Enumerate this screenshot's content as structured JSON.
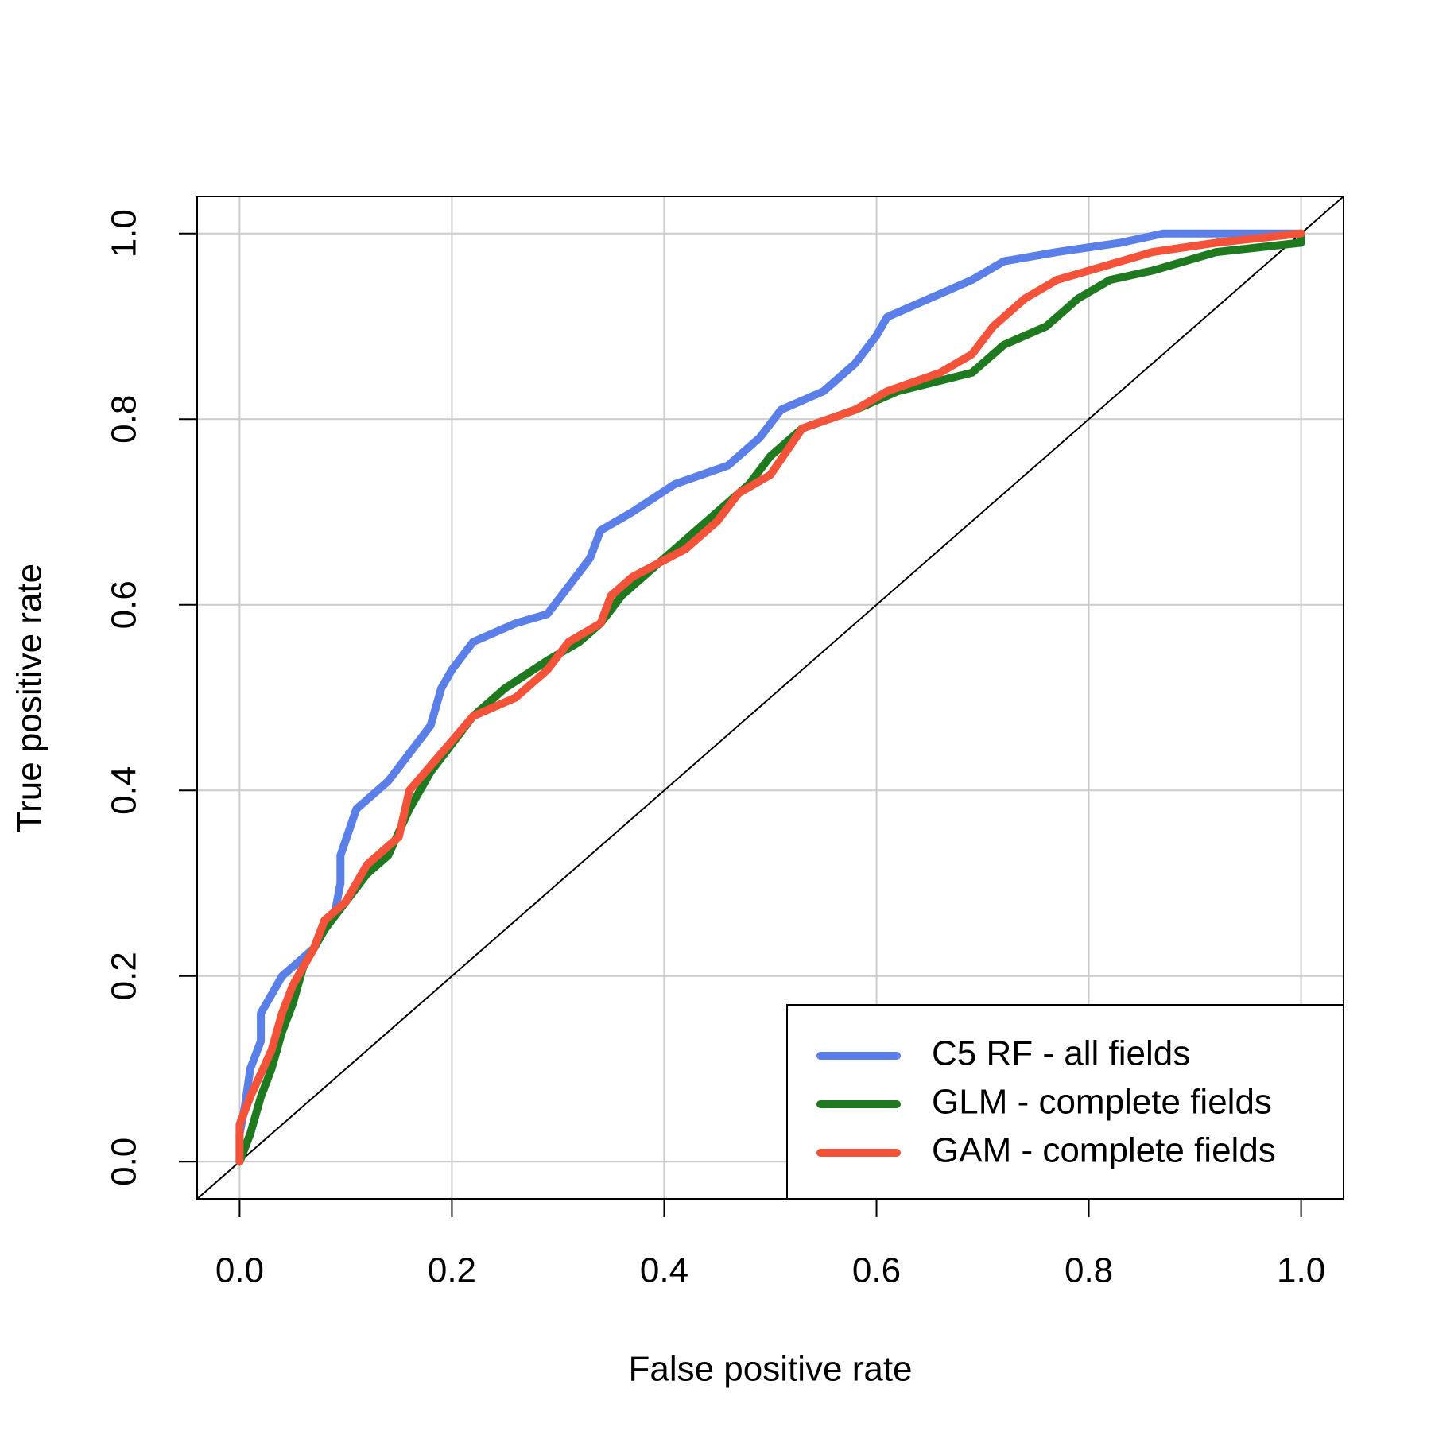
{
  "chart_data": {
    "type": "line",
    "xlabel": "False positive rate",
    "ylabel": "True positive rate",
    "xlim": [
      -0.04,
      1.04
    ],
    "ylim": [
      -0.04,
      1.04
    ],
    "xticks": [
      {
        "value": 0,
        "label": "0.0"
      },
      0.2,
      0.4,
      0.6,
      0.8,
      {
        "value": 1,
        "label": "1.0"
      }
    ],
    "yticks": [
      {
        "value": 0,
        "label": "0.0"
      },
      0.2,
      0.4,
      0.6,
      0.8,
      {
        "value": 1,
        "label": "1.0"
      }
    ],
    "grid": true,
    "legend": "bottomright",
    "series": [
      {
        "name": "C5 RF - all fields",
        "color": "#5b7fe8",
        "x": [
          0,
          0,
          0.005,
          0.01,
          0.02,
          0.02,
          0.03,
          0.04,
          0.05,
          0.07,
          0.09,
          0.095,
          0.095,
          0.11,
          0.14,
          0.16,
          0.18,
          0.19,
          0.2,
          0.22,
          0.26,
          0.29,
          0.31,
          0.33,
          0.34,
          0.37,
          0.41,
          0.46,
          0.49,
          0.51,
          0.55,
          0.58,
          0.6,
          0.61,
          0.65,
          0.69,
          0.72,
          0.77,
          0.83,
          0.87,
          1.0
        ],
        "values": [
          0,
          0.03,
          0.06,
          0.1,
          0.13,
          0.16,
          0.18,
          0.2,
          0.21,
          0.23,
          0.27,
          0.3,
          0.33,
          0.38,
          0.41,
          0.44,
          0.47,
          0.51,
          0.53,
          0.56,
          0.58,
          0.59,
          0.62,
          0.65,
          0.68,
          0.7,
          0.73,
          0.75,
          0.78,
          0.81,
          0.83,
          0.86,
          0.89,
          0.91,
          0.93,
          0.95,
          0.97,
          0.98,
          0.99,
          1.0,
          1.0
        ]
      },
      {
        "name": "GLM - complete fields",
        "color": "#1f7a1f",
        "x": [
          0,
          0.01,
          0.02,
          0.03,
          0.04,
          0.05,
          0.06,
          0.08,
          0.1,
          0.12,
          0.14,
          0.16,
          0.18,
          0.2,
          0.22,
          0.25,
          0.29,
          0.32,
          0.34,
          0.36,
          0.39,
          0.42,
          0.45,
          0.48,
          0.5,
          0.53,
          0.58,
          0.62,
          0.69,
          0.72,
          0.76,
          0.79,
          0.82,
          0.86,
          0.92,
          1,
          1
        ],
        "values": [
          0,
          0.03,
          0.07,
          0.1,
          0.14,
          0.17,
          0.21,
          0.25,
          0.28,
          0.31,
          0.33,
          0.38,
          0.42,
          0.45,
          0.48,
          0.51,
          0.54,
          0.56,
          0.58,
          0.61,
          0.64,
          0.67,
          0.7,
          0.73,
          0.76,
          0.79,
          0.81,
          0.83,
          0.85,
          0.88,
          0.9,
          0.93,
          0.95,
          0.96,
          0.98,
          0.99,
          1
        ]
      },
      {
        "name": "GAM - complete fields",
        "color": "#f4533a",
        "x": [
          0,
          0,
          0.01,
          0.03,
          0.04,
          0.05,
          0.07,
          0.08,
          0.1,
          0.12,
          0.15,
          0.16,
          0.19,
          0.22,
          0.26,
          0.29,
          0.31,
          0.34,
          0.35,
          0.37,
          0.42,
          0.45,
          0.47,
          0.5,
          0.53,
          0.58,
          0.61,
          0.66,
          0.69,
          0.71,
          0.74,
          0.77,
          0.8,
          0.86,
          0.92,
          1
        ],
        "values": [
          0,
          0.04,
          0.07,
          0.12,
          0.16,
          0.19,
          0.23,
          0.26,
          0.28,
          0.32,
          0.35,
          0.4,
          0.44,
          0.48,
          0.5,
          0.53,
          0.56,
          0.58,
          0.61,
          0.63,
          0.66,
          0.69,
          0.72,
          0.74,
          0.79,
          0.81,
          0.83,
          0.85,
          0.87,
          0.9,
          0.93,
          0.95,
          0.96,
          0.98,
          0.99,
          1
        ]
      }
    ]
  }
}
